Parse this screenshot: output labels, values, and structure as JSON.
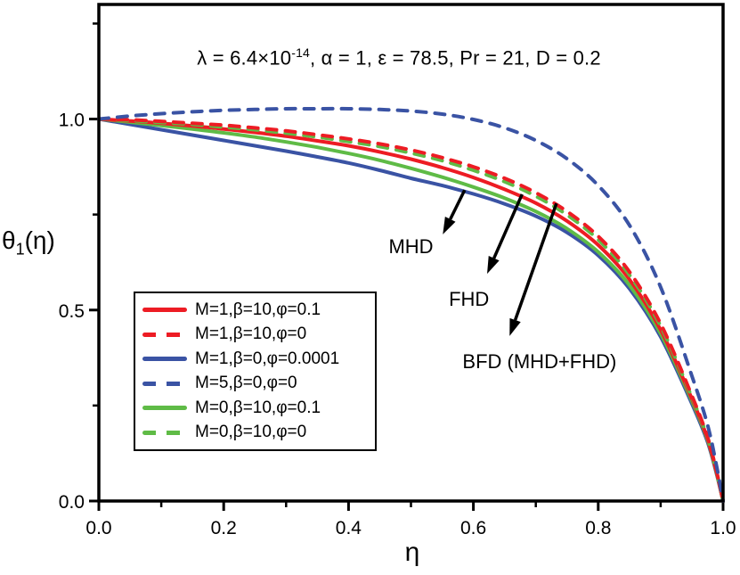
{
  "figure": {
    "title": {
      "prefix": "λ = 6.4×10",
      "exponent": "-14",
      "suffix": ", α = 1, ε = 78.5, Pr = 21, D = 0.2"
    },
    "y_axis_label": {
      "base": "θ",
      "sub": "1",
      "paren": "(η)"
    },
    "x_axis_label": "η"
  },
  "chart_data": {
    "type": "line",
    "title": "λ = 6.4×10^-14, α = 1, ε = 78.5, Pr = 21, D = 0.2",
    "xlabel": "η",
    "ylabel": "θ1(η)",
    "xlim": [
      0,
      1.0
    ],
    "ylim": [
      0,
      1.3
    ],
    "grid": false,
    "legend_position": "lower-left",
    "axis_color": "#000000",
    "x_ticks": {
      "major": [
        0.0,
        0.2,
        0.4,
        0.6,
        0.8,
        1.0
      ],
      "labels": [
        "0.0",
        "0.2",
        "0.4",
        "0.6",
        "0.8",
        "1.0"
      ],
      "minor": [
        0.1,
        0.3,
        0.5,
        0.7,
        0.9
      ]
    },
    "y_ticks": {
      "major": [
        0.0,
        0.5,
        1.0
      ],
      "labels": [
        "0.0",
        "0.5",
        "1.0"
      ],
      "minor": [
        0.25,
        0.75,
        1.25
      ]
    },
    "x": [
      0,
      0.05,
      0.1,
      0.15,
      0.2,
      0.25,
      0.3,
      0.35,
      0.4,
      0.45,
      0.5,
      0.55,
      0.6,
      0.65,
      0.7,
      0.75,
      0.8,
      0.85,
      0.9,
      0.95,
      0.975,
      0.99,
      1.0
    ],
    "series": [
      {
        "name": "M=1,β=0,φ=0.0001",
        "color": "#3A53A4",
        "style": "solid",
        "values": [
          1.0,
          0.986,
          0.972,
          0.958,
          0.944,
          0.93,
          0.916,
          0.901,
          0.885,
          0.866,
          0.845,
          0.826,
          0.804,
          0.778,
          0.746,
          0.703,
          0.643,
          0.556,
          0.43,
          0.255,
          0.155,
          0.068,
          0.0
        ]
      },
      {
        "name": "M=0,β=10,φ=0.1",
        "color": "#5FBB46",
        "style": "solid",
        "values": [
          1.0,
          0.992,
          0.983,
          0.974,
          0.964,
          0.953,
          0.94,
          0.926,
          0.91,
          0.892,
          0.871,
          0.848,
          0.822,
          0.793,
          0.758,
          0.713,
          0.652,
          0.565,
          0.438,
          0.262,
          0.16,
          0.07,
          0.0
        ]
      },
      {
        "name": "M=1,β=10,φ=0.1",
        "color": "#ED1C24",
        "style": "solid",
        "values": [
          1.0,
          0.995,
          0.989,
          0.982,
          0.974,
          0.965,
          0.955,
          0.943,
          0.93,
          0.914,
          0.895,
          0.873,
          0.847,
          0.816,
          0.78,
          0.733,
          0.67,
          0.58,
          0.448,
          0.268,
          0.163,
          0.072,
          0.0
        ]
      },
      {
        "name": "M=0,β=10,φ=0",
        "color": "#5FBB46",
        "style": "dashed",
        "values": [
          1.0,
          0.996,
          0.991,
          0.986,
          0.979,
          0.972,
          0.963,
          0.953,
          0.941,
          0.928,
          0.911,
          0.891,
          0.866,
          0.836,
          0.798,
          0.749,
          0.684,
          0.592,
          0.458,
          0.272,
          0.166,
          0.073,
          0.0
        ]
      },
      {
        "name": "M=1,β=10,φ=0",
        "color": "#ED1C24",
        "style": "dashed",
        "values": [
          1.0,
          0.998,
          0.994,
          0.989,
          0.984,
          0.977,
          0.969,
          0.959,
          0.948,
          0.935,
          0.919,
          0.899,
          0.875,
          0.845,
          0.807,
          0.758,
          0.693,
          0.6,
          0.464,
          0.276,
          0.168,
          0.074,
          0.0
        ]
      },
      {
        "name": "M=5,β=0,φ=0",
        "color": "#3A53A4",
        "style": "dashed",
        "values": [
          1.0,
          1.008,
          1.014,
          1.019,
          1.023,
          1.025,
          1.027,
          1.027,
          1.027,
          1.025,
          1.021,
          1.013,
          0.999,
          0.977,
          0.944,
          0.896,
          0.826,
          0.722,
          0.56,
          0.328,
          0.2,
          0.088,
          0.0
        ]
      }
    ],
    "legend_order": [
      2,
      4,
      0,
      5,
      1,
      3
    ],
    "annotations": [
      {
        "label": "MHD",
        "from": [
          0.586,
          0.814
        ],
        "to": [
          0.551,
          0.698
        ],
        "label_pos": [
          0.5,
          0.668
        ]
      },
      {
        "label": "FHD",
        "from": [
          0.678,
          0.803
        ],
        "to": [
          0.622,
          0.595
        ],
        "label_pos": [
          0.593,
          0.53
        ]
      },
      {
        "label": "BFD (MHD+FHD)",
        "from": [
          0.733,
          0.779
        ],
        "to": [
          0.658,
          0.432
        ],
        "label_pos": [
          0.706,
          0.366
        ]
      }
    ]
  }
}
